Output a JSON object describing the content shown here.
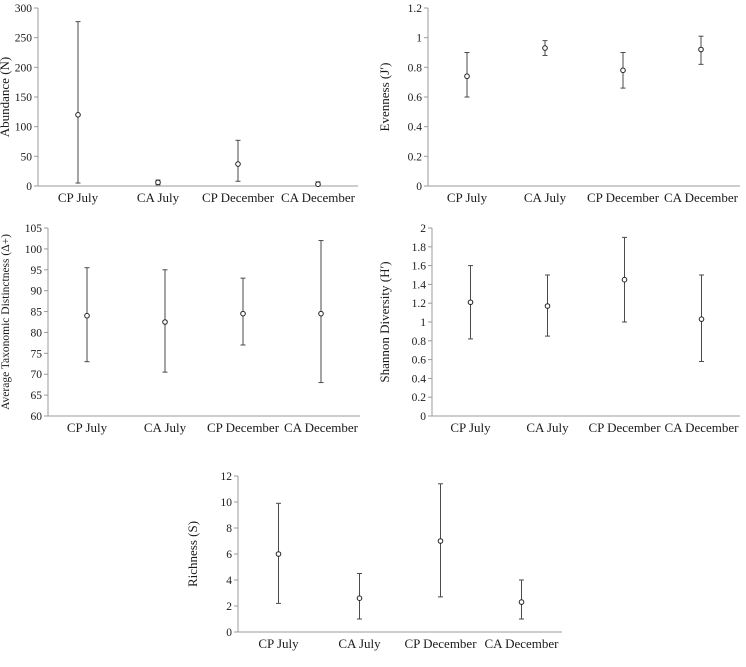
{
  "figure": {
    "title": "",
    "background": "#ffffff",
    "text_color": "#1a1a1a",
    "axis_color": "#9b9b9b",
    "errorbar_color": "#4a4a4a",
    "marker": "open-circle"
  },
  "chart_data": [
    {
      "type": "scatter",
      "subtype": "point-with-error-bars",
      "title": "",
      "xlabel": "",
      "ylabel": "Abundance (N)",
      "categories": [
        "CP July",
        "CA July",
        "CP December",
        "CA December"
      ],
      "values": [
        120,
        6,
        37,
        3
      ],
      "lower": [
        5,
        2,
        8,
        1
      ],
      "upper": [
        277,
        10,
        77,
        7
      ],
      "ylim": [
        0,
        300
      ],
      "ytick_step": 50,
      "grid": false,
      "legend": "none"
    },
    {
      "type": "scatter",
      "subtype": "point-with-error-bars",
      "title": "",
      "xlabel": "",
      "ylabel": "Evenness (J′)",
      "categories": [
        "CP July",
        "CA July",
        "CP December",
        "CA December"
      ],
      "values": [
        0.74,
        0.93,
        0.78,
        0.92
      ],
      "lower": [
        0.6,
        0.88,
        0.66,
        0.82
      ],
      "upper": [
        0.9,
        0.98,
        0.9,
        1.01
      ],
      "ylim": [
        0,
        1.2
      ],
      "ytick_step": 0.2,
      "grid": false,
      "legend": "none"
    },
    {
      "type": "scatter",
      "subtype": "point-with-error-bars",
      "title": "",
      "xlabel": "",
      "ylabel": "Average Taxonomic Distinctness (Δ+)",
      "categories": [
        "CP July",
        "CA July",
        "CP December",
        "CA December"
      ],
      "values": [
        84,
        82.5,
        84.5,
        84.5
      ],
      "lower": [
        73,
        70.5,
        77,
        68
      ],
      "upper": [
        95.5,
        95,
        93,
        102
      ],
      "ylim": [
        60,
        105
      ],
      "ytick_step": 5,
      "grid": false,
      "legend": "none"
    },
    {
      "type": "scatter",
      "subtype": "point-with-error-bars",
      "title": "",
      "xlabel": "",
      "ylabel": "Shannon Diversity (H′)",
      "categories": [
        "CP July",
        "CA July",
        "CP December",
        "CA December"
      ],
      "values": [
        1.21,
        1.17,
        1.45,
        1.03
      ],
      "lower": [
        0.82,
        0.85,
        1.0,
        0.58
      ],
      "upper": [
        1.6,
        1.5,
        1.9,
        1.5
      ],
      "ylim": [
        0,
        2
      ],
      "ytick_step": 0.2,
      "grid": false,
      "legend": "none"
    },
    {
      "type": "scatter",
      "subtype": "point-with-error-bars",
      "title": "",
      "xlabel": "",
      "ylabel": "Richness (S)",
      "categories": [
        "CP July",
        "CA July",
        "CP December",
        "CA December"
      ],
      "values": [
        6,
        2.6,
        7,
        2.3
      ],
      "lower": [
        2.2,
        1.0,
        2.7,
        1.0
      ],
      "upper": [
        9.9,
        4.5,
        11.4,
        4.0
      ],
      "ylim": [
        0,
        12
      ],
      "ytick_step": 2,
      "grid": false,
      "legend": "none"
    }
  ]
}
